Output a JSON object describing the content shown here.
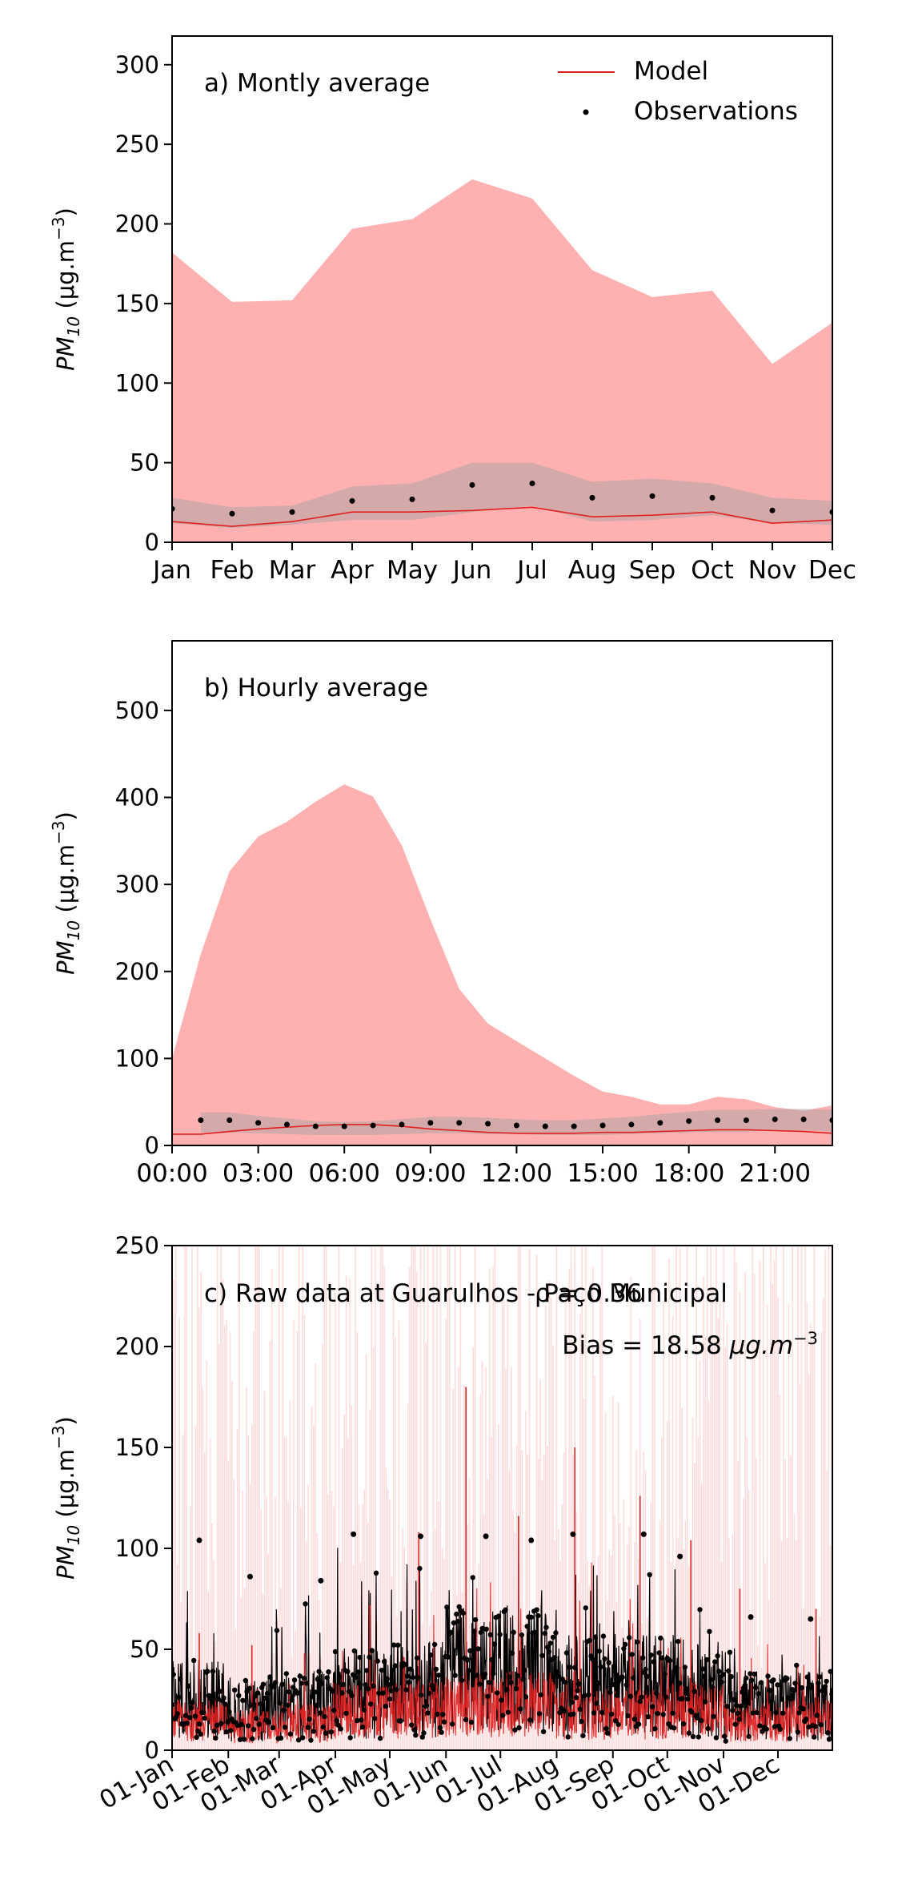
{
  "colors": {
    "model": "#e02020",
    "model_band": "#ff9d9d",
    "obs": "#000000",
    "obs_band": "#a0a0a0",
    "raw_band": "#ffd6d6"
  },
  "legend": {
    "model": "Model",
    "obs": "Observations"
  },
  "panels": {
    "a": {
      "label": "a) Montly average",
      "ylabel": "PM",
      "ysub": "10",
      "yunit": " (μg.m",
      "yexp": "−3",
      "yclose": ")"
    },
    "b": {
      "label": "b) Hourly average",
      "ylabel": "PM",
      "ysub": "10",
      "yunit": " (μg.m",
      "yexp": "−3",
      "yclose": ")"
    },
    "c": {
      "label": "c) Raw data at Guarulhos - Paço Municipal",
      "rho": "ρ = 0.36",
      "bias_prefix": "Bias = 18.58 ",
      "bias_unit": "μg.m",
      "bias_exp": "−3",
      "ylabel": "PM",
      "ysub": "10",
      "yunit": " (μg.m",
      "yexp": "−3",
      "yclose": ")"
    }
  },
  "chart_data": [
    {
      "type": "area",
      "title": "a) Montly average",
      "x_ticks": [
        "Jan",
        "Feb",
        "Mar",
        "Apr",
        "May",
        "Jun",
        "Jul",
        "Aug",
        "Sep",
        "Oct",
        "Nov",
        "Dec"
      ],
      "ylim": [
        0,
        318
      ],
      "y_ticks": [
        0,
        50,
        100,
        150,
        200,
        250,
        300
      ],
      "legend_position": "top-right",
      "series": [
        {
          "name": "Model",
          "values": [
            13,
            10,
            13,
            19,
            19,
            20,
            22,
            16,
            17,
            19,
            12,
            14
          ],
          "band_upper": [
            182,
            151,
            152,
            197,
            203,
            228,
            216,
            171,
            154,
            158,
            112,
            138
          ],
          "band_lower": [
            0,
            0,
            0,
            0,
            0,
            0,
            0,
            0,
            0,
            0,
            0,
            0
          ]
        },
        {
          "name": "Observations",
          "values": [
            21,
            18,
            19,
            26,
            27,
            36,
            37,
            28,
            29,
            28,
            20,
            19
          ],
          "band_upper": [
            28,
            22,
            23,
            35,
            37,
            50,
            50,
            38,
            40,
            37,
            28,
            26
          ],
          "band_lower": [
            12,
            9,
            11,
            14,
            14,
            19,
            23,
            13,
            14,
            17,
            12,
            11
          ]
        }
      ]
    },
    {
      "type": "area",
      "title": "b) Hourly average",
      "x": [
        0,
        1,
        2,
        3,
        4,
        5,
        6,
        7,
        8,
        9,
        10,
        11,
        12,
        13,
        14,
        15,
        16,
        17,
        18,
        19,
        20,
        21,
        22,
        23
      ],
      "x_ticks": [
        "00:00",
        "03:00",
        "06:00",
        "09:00",
        "12:00",
        "15:00",
        "18:00",
        "21:00"
      ],
      "ylim": [
        0,
        580
      ],
      "y_ticks": [
        0,
        100,
        200,
        300,
        400,
        500
      ],
      "series": [
        {
          "name": "Model",
          "values": [
            13,
            13,
            16,
            19,
            21,
            23,
            24,
            24,
            22,
            19,
            17,
            15,
            14,
            14,
            14,
            15,
            15,
            16,
            17,
            18,
            18,
            17,
            16,
            14
          ],
          "band_upper": [
            100,
            220,
            315,
            355,
            372,
            395,
            415,
            401,
            345,
            260,
            180,
            140,
            120,
            100,
            80,
            62,
            56,
            47,
            47,
            56,
            53,
            44,
            40,
            46
          ],
          "band_lower": [
            0,
            0,
            0,
            0,
            0,
            0,
            0,
            0,
            0,
            0,
            0,
            0,
            0,
            0,
            0,
            0,
            0,
            0,
            0,
            0,
            0,
            0,
            0,
            0
          ]
        },
        {
          "name": "Observations",
          "x": [
            1,
            2,
            3,
            4,
            5,
            6,
            7,
            8,
            9,
            10,
            11,
            12,
            13,
            14,
            15,
            16,
            17,
            18,
            19,
            20,
            21,
            22,
            23
          ],
          "values": [
            29,
            29,
            26,
            24,
            22,
            22,
            23,
            24,
            26,
            26,
            25,
            23,
            22,
            22,
            23,
            24,
            26,
            28,
            29,
            29,
            30,
            30,
            29
          ],
          "band_upper": [
            38,
            38,
            34,
            31,
            28,
            27,
            28,
            30,
            33,
            33,
            32,
            30,
            29,
            29,
            31,
            33,
            36,
            39,
            41,
            41,
            42,
            42,
            41
          ],
          "band_lower": [
            15,
            15,
            14,
            13,
            12,
            12,
            12,
            13,
            14,
            14,
            13,
            13,
            12,
            12,
            12,
            13,
            14,
            15,
            16,
            16,
            17,
            17,
            16
          ]
        }
      ]
    },
    {
      "type": "line",
      "title": "c) Raw data at Guarulhos - Paço Municipal",
      "x_ticks": [
        "01-Jan",
        "01-Feb",
        "01-Mar",
        "01-Apr",
        "01-May",
        "01-Jun",
        "01-Jul",
        "01-Aug",
        "01-Sep",
        "01-Oct",
        "01-Nov",
        "01-Dec"
      ],
      "xlim": [
        "01-Jan",
        "31-Dec"
      ],
      "ylim": [
        0,
        250
      ],
      "y_ticks": [
        0,
        50,
        100,
        150,
        200,
        250
      ],
      "monthly_series": {
        "months": [
          "Jan",
          "Feb",
          "Mar",
          "Apr",
          "May",
          "Jun",
          "Jul",
          "Aug",
          "Sep",
          "Oct",
          "Nov",
          "Dec"
        ],
        "obs_typical": [
          25,
          20,
          22,
          28,
          30,
          40,
          40,
          32,
          32,
          30,
          22,
          22
        ],
        "obs_max": [
          104,
          86,
          84,
          107,
          106,
          106,
          104,
          107,
          107,
          96,
          66,
          65
        ],
        "model_typical": [
          14,
          11,
          13,
          19,
          19,
          21,
          22,
          17,
          17,
          19,
          13,
          14
        ],
        "model_max": [
          58,
          52,
          48,
          72,
          108,
          180,
          116,
          150,
          126,
          104,
          80,
          70
        ]
      },
      "annotations": [
        "ρ = 0.36",
        "Bias = 18.58 μg.m−3"
      ]
    }
  ]
}
